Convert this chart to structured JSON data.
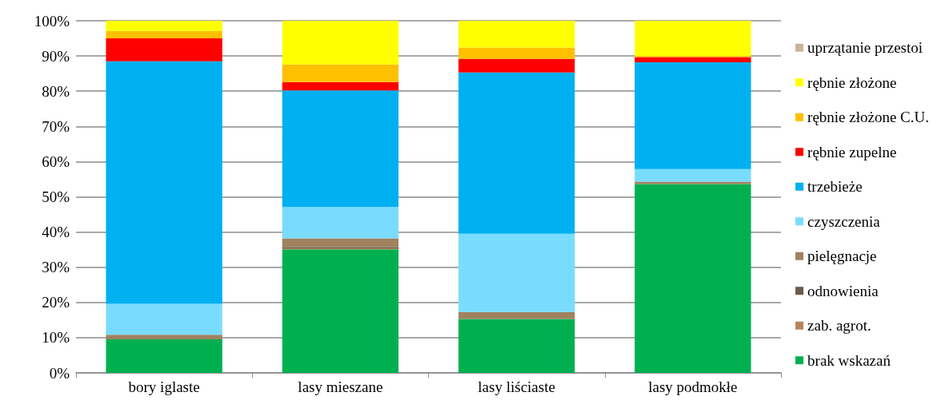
{
  "chart_data": {
    "type": "bar",
    "stacked": true,
    "categories": [
      "bory iglaste",
      "lasy mieszane",
      "lasy liściaste",
      "lasy podmokłe"
    ],
    "series": [
      {
        "name": "brak wskazań",
        "color": "#00b050",
        "values": [
          9.5,
          35.1,
          15.3,
          53.6
        ]
      },
      {
        "name": "zab. agrot.",
        "color": "#b5855a",
        "values": [
          0,
          0.3,
          0,
          0
        ]
      },
      {
        "name": "odnowienia",
        "color": "#6b5a48",
        "values": [
          0,
          0.3,
          0,
          0
        ]
      },
      {
        "name": "pielęgnacje",
        "color": "#a0825f",
        "values": [
          1.3,
          2.5,
          2.0,
          0.7
        ]
      },
      {
        "name": "czyszczenia",
        "color": "#79dcff",
        "values": [
          8.8,
          8.9,
          22.2,
          3.6
        ]
      },
      {
        "name": "trzebieże",
        "color": "#00b0f0",
        "values": [
          68.9,
          33.1,
          45.8,
          30.3
        ]
      },
      {
        "name": "rębnie zupelne",
        "color": "#ff0000",
        "values": [
          6.5,
          2.4,
          3.9,
          1.5
        ]
      },
      {
        "name": "rębnie złożone C.U.",
        "color": "#ffc000",
        "values": [
          2.1,
          5.0,
          3.2,
          0.3
        ]
      },
      {
        "name": "rębnie złożone",
        "color": "#ffff00",
        "values": [
          2.9,
          12.4,
          7.6,
          10.0
        ]
      },
      {
        "name": "uprzątanie przestoi",
        "color": "#c8b49c",
        "values": [
          0,
          null,
          0,
          0
        ]
      }
    ],
    "ylim": [
      0,
      100
    ],
    "yticks": [
      {
        "value": 0,
        "label": "0%"
      },
      {
        "value": 10,
        "label": "10%"
      },
      {
        "value": 20,
        "label": "20%"
      },
      {
        "value": 30,
        "label": "30%"
      },
      {
        "value": 40,
        "label": "40%"
      },
      {
        "value": 50,
        "label": "50%"
      },
      {
        "value": 60,
        "label": "60%"
      },
      {
        "value": 70,
        "label": "70%"
      },
      {
        "value": 80,
        "label": "80%"
      },
      {
        "value": 90,
        "label": "90%"
      },
      {
        "value": 100,
        "label": "100%"
      }
    ],
    "grid": "y",
    "legend": "right"
  }
}
